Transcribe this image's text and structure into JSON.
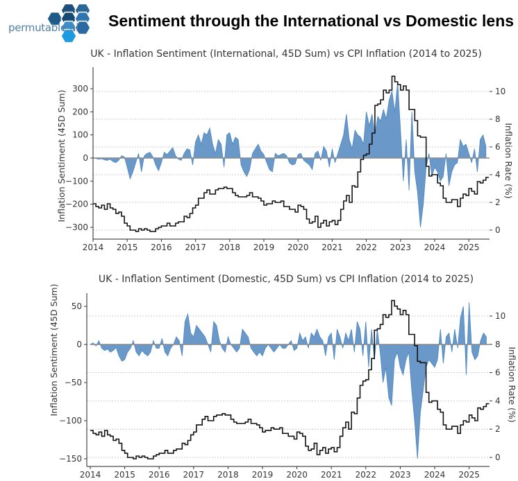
{
  "header": {
    "logo_text": "permutable.ai",
    "title": "Sentiment through the International vs Domestic lens"
  },
  "colors": {
    "sentiment_fill": "#6a98c8",
    "sentiment_line": "#4a86c4",
    "cpi_line": "#111111",
    "zero_line": "#8a8a8a",
    "grid": "#bbbbbb"
  },
  "chart_data": [
    {
      "type": "area+line",
      "title": "UK - Inflation Sentiment (International, 45D Sum) vs CPI Inflation (2014 to 2025)",
      "ylabel": "Inflation Sentiment (45D Sum)",
      "y2label": "Inflation Rate (%)",
      "x_ticks": [
        "2014",
        "2015",
        "2016",
        "2017",
        "2018",
        "2019",
        "2020",
        "2021",
        "2022",
        "2023",
        "2024",
        "2025"
      ],
      "y_ticks": [
        300,
        200,
        100,
        0,
        -100,
        -200,
        -300
      ],
      "y_tick_labels": [
        "300",
        "200",
        "100",
        "0",
        "−100",
        "−200",
        "−300"
      ],
      "y2_ticks": [
        10,
        8,
        6,
        4,
        2,
        0
      ],
      "y2_tick_labels": [
        "10",
        "8",
        "6",
        "4",
        "2",
        "0"
      ],
      "xlim": [
        2014,
        2025.6
      ],
      "ylim": [
        -350,
        390
      ],
      "y2lim": [
        -0.65,
        11.7
      ],
      "grid": "horizontal dotted at y2 ticks",
      "x_start": "2014-01",
      "x_step": "month",
      "series": [
        {
          "axis": "left",
          "style": "filled-area",
          "values": [
            0,
            -2,
            -5,
            -3,
            -8,
            -10,
            -5,
            -15,
            -20,
            -10,
            10,
            5,
            -40,
            -90,
            -60,
            -20,
            20,
            -60,
            10,
            20,
            25,
            5,
            -30,
            -55,
            -20,
            25,
            15,
            30,
            45,
            10,
            -5,
            -10,
            20,
            40,
            35,
            -30,
            70,
            100,
            60,
            110,
            100,
            130,
            60,
            20,
            80,
            60,
            -40,
            100,
            110,
            60,
            90,
            80,
            -30,
            -60,
            -80,
            -50,
            20,
            40,
            60,
            30,
            15,
            -20,
            -50,
            -60,
            20,
            10,
            15,
            20,
            10,
            -20,
            -30,
            -25,
            15,
            20,
            -10,
            -20,
            -30,
            -50,
            20,
            30,
            -10,
            50,
            30,
            -40,
            40,
            -20,
            20,
            60,
            100,
            190,
            80,
            40,
            120,
            100,
            90,
            60,
            200,
            140,
            190,
            100,
            180,
            160,
            210,
            170,
            250,
            290,
            200,
            330,
            120,
            -100,
            80,
            -140,
            200,
            -60,
            -150,
            -300,
            -200,
            -40,
            20,
            -80,
            -40,
            -60,
            -100,
            -80,
            20,
            -120,
            -60,
            -30,
            -20,
            80,
            50,
            60,
            20,
            -20,
            40,
            -60,
            80,
            100,
            50
          ]
        },
        {
          "axis": "right",
          "style": "step-line",
          "values": [
            1.9,
            1.7,
            1.6,
            1.8,
            1.5,
            1.9,
            1.6,
            1.5,
            1.2,
            1.3,
            1.0,
            0.5,
            0.3,
            0.0,
            0.0,
            -0.1,
            0.1,
            0.0,
            0.1,
            0.0,
            -0.1,
            -0.1,
            0.1,
            0.2,
            0.3,
            0.3,
            0.5,
            0.3,
            0.3,
            0.5,
            0.6,
            0.6,
            1.0,
            0.9,
            1.2,
            1.6,
            1.8,
            2.3,
            2.3,
            2.7,
            2.9,
            2.6,
            2.6,
            2.9,
            3.0,
            3.0,
            3.1,
            3.0,
            3.0,
            2.7,
            2.5,
            2.4,
            2.4,
            2.4,
            2.5,
            2.7,
            2.4,
            2.4,
            2.3,
            2.1,
            1.8,
            1.9,
            1.9,
            2.1,
            2.0,
            2.0,
            2.1,
            1.7,
            1.7,
            1.5,
            1.5,
            1.3,
            1.8,
            1.7,
            1.5,
            0.8,
            0.5,
            0.6,
            1.0,
            0.2,
            0.5,
            0.7,
            0.3,
            0.6,
            0.7,
            0.4,
            0.7,
            1.5,
            2.1,
            2.5,
            2.0,
            3.2,
            3.1,
            4.2,
            5.1,
            5.4,
            5.5,
            6.2,
            7.0,
            9.0,
            9.1,
            9.4,
            10.1,
            9.9,
            10.1,
            11.1,
            10.7,
            10.5,
            10.1,
            10.4,
            10.1,
            8.7,
            8.7,
            7.9,
            6.8,
            6.7,
            6.7,
            4.6,
            3.9,
            4.0,
            4.0,
            3.4,
            3.2,
            2.3,
            2.0,
            2.0,
            2.2,
            2.2,
            1.7,
            2.3,
            2.6,
            2.5,
            3.0,
            2.8,
            2.6,
            3.5,
            3.4,
            3.6,
            3.8
          ]
        }
      ]
    },
    {
      "type": "area+line",
      "title": "UK - Inflation Sentiment (Domestic, 45D Sum) vs CPI Inflation (2014 to 2025)",
      "ylabel": "Inflation Sentiment (45D Sum)",
      "y2label": "Inflation Rate (%)",
      "x_ticks": [
        "2014",
        "2015",
        "2016",
        "2017",
        "2018",
        "2019",
        "2020",
        "2021",
        "2022",
        "2023",
        "2024",
        "2025"
      ],
      "y_ticks": [
        50,
        0,
        -50,
        -100,
        -150
      ],
      "y_tick_labels": [
        "50",
        "0",
        "−50",
        "−100",
        "−150"
      ],
      "y2_ticks": [
        10,
        8,
        6,
        4,
        2,
        0
      ],
      "y2_tick_labels": [
        "10",
        "8",
        "6",
        "4",
        "2",
        "0"
      ],
      "xlim": [
        2014,
        2025.6
      ],
      "ylim": [
        -160,
        67
      ],
      "y2lim": [
        -0.6,
        11.6
      ],
      "grid": "horizontal dotted at y2 ticks",
      "x_start": "2014-01",
      "x_step": "month",
      "series": [
        {
          "axis": "left",
          "style": "filled-area",
          "values": [
            0,
            2,
            -2,
            5,
            -5,
            -8,
            -6,
            -10,
            -8,
            -4,
            -15,
            -22,
            -20,
            -10,
            -5,
            5,
            -10,
            -15,
            -8,
            -12,
            -15,
            -10,
            5,
            -5,
            -5,
            8,
            -10,
            -15,
            -5,
            0,
            10,
            5,
            -15,
            30,
            40,
            15,
            10,
            25,
            20,
            15,
            10,
            0,
            -10,
            30,
            25,
            5,
            -5,
            -10,
            10,
            0,
            -5,
            -10,
            -5,
            20,
            15,
            10,
            -5,
            -10,
            -15,
            -10,
            -15,
            -5,
            0,
            -5,
            -10,
            -5,
            0,
            -5,
            -5,
            0,
            5,
            -8,
            -5,
            15,
            5,
            10,
            -5,
            15,
            10,
            20,
            10,
            5,
            -15,
            10,
            15,
            -20,
            20,
            10,
            -5,
            15,
            5,
            20,
            -10,
            30,
            20,
            -15,
            30,
            -30,
            20,
            -20,
            20,
            -10,
            -50,
            -30,
            -70,
            -80,
            -20,
            -10,
            -30,
            -40,
            -20,
            -10,
            -60,
            -100,
            -150,
            -90,
            -60,
            -30,
            -20,
            -25,
            -30,
            -20,
            20,
            -25,
            10,
            15,
            -10,
            20,
            -5,
            35,
            50,
            -40,
            55,
            -10,
            -20,
            -15,
            5,
            15,
            10
          ]
        },
        {
          "axis": "right",
          "style": "step-line",
          "values": [
            1.9,
            1.7,
            1.6,
            1.8,
            1.5,
            1.9,
            1.6,
            1.5,
            1.2,
            1.3,
            1.0,
            0.5,
            0.3,
            0.0,
            0.0,
            -0.1,
            0.1,
            0.0,
            0.1,
            0.0,
            -0.1,
            -0.1,
            0.1,
            0.2,
            0.3,
            0.3,
            0.5,
            0.3,
            0.3,
            0.5,
            0.6,
            0.6,
            1.0,
            0.9,
            1.2,
            1.6,
            1.8,
            2.3,
            2.3,
            2.7,
            2.9,
            2.6,
            2.6,
            2.9,
            3.0,
            3.0,
            3.1,
            3.0,
            3.0,
            2.7,
            2.5,
            2.4,
            2.4,
            2.4,
            2.5,
            2.7,
            2.4,
            2.4,
            2.3,
            2.1,
            1.8,
            1.9,
            1.9,
            2.1,
            2.0,
            2.0,
            2.1,
            1.7,
            1.7,
            1.5,
            1.5,
            1.3,
            1.8,
            1.7,
            1.5,
            0.8,
            0.5,
            0.6,
            1.0,
            0.2,
            0.5,
            0.7,
            0.3,
            0.6,
            0.7,
            0.4,
            0.7,
            1.5,
            2.1,
            2.5,
            2.0,
            3.2,
            3.1,
            4.2,
            5.1,
            5.4,
            5.5,
            6.2,
            7.0,
            9.0,
            9.1,
            9.4,
            10.1,
            9.9,
            10.1,
            11.1,
            10.7,
            10.5,
            10.1,
            10.4,
            10.1,
            8.7,
            8.7,
            7.9,
            6.8,
            6.7,
            6.7,
            4.6,
            3.9,
            4.0,
            4.0,
            3.4,
            3.2,
            2.3,
            2.0,
            2.0,
            2.2,
            2.2,
            1.7,
            2.3,
            2.6,
            2.5,
            3.0,
            2.8,
            2.6,
            3.5,
            3.4,
            3.6,
            3.8
          ]
        }
      ]
    }
  ]
}
